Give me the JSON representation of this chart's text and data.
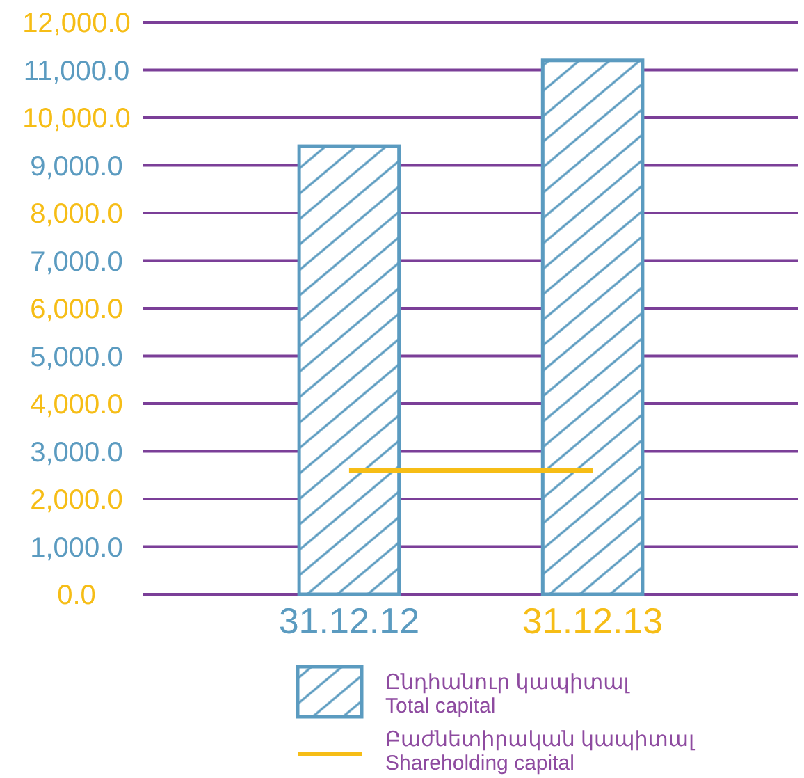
{
  "chart_data": {
    "type": "bar",
    "categories": [
      "31.12.12",
      "31.12.13"
    ],
    "series": [
      {
        "name": "Ընդհանուր կապիտալ\nTotal capital",
        "color": "#5b9bc0",
        "values": [
          9400,
          11200
        ]
      },
      {
        "name": "Բաժնետիրական կապիտալ\nShareholding capital",
        "type": "line",
        "color": "#f6bd16",
        "values": [
          2600,
          2600
        ]
      }
    ],
    "ylim": [
      0,
      12000
    ],
    "yticks": [
      {
        "value": 0,
        "label": "0.0"
      },
      {
        "value": 1000,
        "label": "1,000.0"
      },
      {
        "value": 2000,
        "label": "2,000.0"
      },
      {
        "value": 3000,
        "label": "3,000.0"
      },
      {
        "value": 4000,
        "label": "4,000.0"
      },
      {
        "value": 5000,
        "label": "5,000.0"
      },
      {
        "value": 6000,
        "label": "6,000.0"
      },
      {
        "value": 7000,
        "label": "7,000.0"
      },
      {
        "value": 8000,
        "label": "8,000.0"
      },
      {
        "value": 9000,
        "label": "9,000.0"
      },
      {
        "value": 10000,
        "label": "10,000.0"
      },
      {
        "value": 11000,
        "label": "11,000.0"
      },
      {
        "value": 12000,
        "label": "12,000.0"
      }
    ],
    "grid": "y",
    "legend": "bottom"
  }
}
